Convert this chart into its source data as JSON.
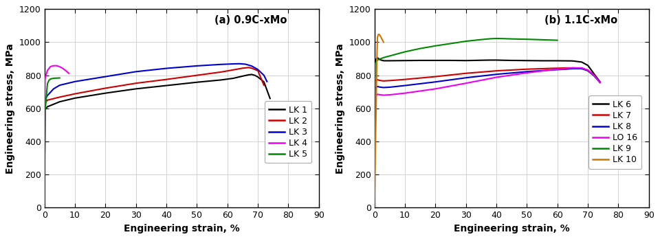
{
  "title_a": "(a) 0.9C-xMo",
  "title_b": "(b) 1.1C-xMo",
  "xlabel": "Engineering strain, %",
  "ylabel": "Engineering stress, MPa",
  "ylim": [
    0,
    1200
  ],
  "xlim": [
    0,
    90
  ],
  "yticks": [
    0,
    200,
    400,
    600,
    800,
    1000,
    1200
  ],
  "xticks": [
    0,
    10,
    20,
    30,
    40,
    50,
    60,
    70,
    80,
    90
  ],
  "background_color": "#ffffff",
  "grid_color": "#cccccc",
  "curves_a": {
    "LK 1": {
      "color": "#000000",
      "points": [
        [
          0.0,
          0
        ],
        [
          0.15,
          590
        ],
        [
          0.5,
          600
        ],
        [
          1.0,
          610
        ],
        [
          5,
          640
        ],
        [
          10,
          662
        ],
        [
          20,
          692
        ],
        [
          30,
          718
        ],
        [
          40,
          738
        ],
        [
          50,
          758
        ],
        [
          58,
          772
        ],
        [
          62,
          782
        ],
        [
          65,
          795
        ],
        [
          67,
          803
        ],
        [
          68,
          805
        ],
        [
          69,
          800
        ],
        [
          70,
          790
        ],
        [
          72,
          760
        ],
        [
          74,
          660
        ]
      ]
    },
    "LK 2": {
      "color": "#cc0000",
      "points": [
        [
          0.0,
          0
        ],
        [
          0.15,
          630
        ],
        [
          0.5,
          640
        ],
        [
          1.0,
          650
        ],
        [
          5,
          668
        ],
        [
          10,
          688
        ],
        [
          20,
          722
        ],
        [
          30,
          752
        ],
        [
          40,
          775
        ],
        [
          50,
          800
        ],
        [
          58,
          820
        ],
        [
          62,
          833
        ],
        [
          65,
          843
        ],
        [
          67,
          847
        ],
        [
          68,
          843
        ],
        [
          70,
          828
        ],
        [
          72,
          740
        ]
      ]
    },
    "LK 3": {
      "color": "#0000cc",
      "points": [
        [
          0.0,
          0
        ],
        [
          0.15,
          650
        ],
        [
          0.5,
          665
        ],
        [
          1.0,
          678
        ],
        [
          3,
          718
        ],
        [
          5,
          740
        ],
        [
          10,
          762
        ],
        [
          20,
          792
        ],
        [
          30,
          822
        ],
        [
          40,
          842
        ],
        [
          50,
          857
        ],
        [
          58,
          866
        ],
        [
          62,
          869
        ],
        [
          64,
          870
        ],
        [
          66,
          867
        ],
        [
          68,
          856
        ],
        [
          70,
          835
        ],
        [
          72,
          800
        ],
        [
          73,
          762
        ]
      ]
    },
    "LK 4": {
      "color": "#ee00ee",
      "points": [
        [
          0.0,
          0
        ],
        [
          0.15,
          775
        ],
        [
          0.5,
          800
        ],
        [
          1.0,
          830
        ],
        [
          2,
          853
        ],
        [
          3,
          858
        ],
        [
          4,
          858
        ],
        [
          5,
          852
        ],
        [
          6,
          842
        ],
        [
          7,
          828
        ],
        [
          8,
          812
        ]
      ]
    },
    "LK 5": {
      "color": "#008800",
      "points": [
        [
          0.0,
          0
        ],
        [
          0.15,
          580
        ],
        [
          0.4,
          620
        ],
        [
          0.6,
          660
        ],
        [
          0.8,
          710
        ],
        [
          1.0,
          750
        ],
        [
          1.5,
          770
        ],
        [
          2.0,
          778
        ],
        [
          3.0,
          782
        ],
        [
          4.0,
          783
        ],
        [
          5.0,
          784
        ]
      ]
    }
  },
  "curves_b": {
    "LK 6": {
      "color": "#000000",
      "points": [
        [
          0.0,
          0
        ],
        [
          0.15,
          870
        ],
        [
          0.5,
          895
        ],
        [
          0.8,
          905
        ],
        [
          1.0,
          905
        ],
        [
          1.5,
          900
        ],
        [
          2,
          893
        ],
        [
          3,
          888
        ],
        [
          5,
          888
        ],
        [
          10,
          889
        ],
        [
          15,
          890
        ],
        [
          20,
          890
        ],
        [
          25,
          890
        ],
        [
          30,
          889
        ],
        [
          35,
          891
        ],
        [
          38,
          892
        ],
        [
          40,
          892
        ],
        [
          42,
          891
        ],
        [
          45,
          890
        ],
        [
          50,
          889
        ],
        [
          55,
          888
        ],
        [
          60,
          888
        ],
        [
          65,
          887
        ],
        [
          68,
          880
        ],
        [
          70,
          860
        ],
        [
          72,
          810
        ],
        [
          74,
          760
        ]
      ]
    },
    "LK 7": {
      "color": "#cc0000",
      "points": [
        [
          0.0,
          0
        ],
        [
          0.15,
          762
        ],
        [
          0.5,
          770
        ],
        [
          1.0,
          773
        ],
        [
          2,
          768
        ],
        [
          3,
          766
        ],
        [
          5,
          768
        ],
        [
          10,
          775
        ],
        [
          20,
          792
        ],
        [
          30,
          812
        ],
        [
          40,
          827
        ],
        [
          50,
          837
        ],
        [
          58,
          842
        ],
        [
          62,
          844
        ],
        [
          65,
          845
        ],
        [
          68,
          843
        ],
        [
          70,
          832
        ],
        [
          72,
          802
        ],
        [
          74,
          756
        ]
      ]
    },
    "LK 8": {
      "color": "#0000cc",
      "points": [
        [
          0.0,
          0
        ],
        [
          0.15,
          718
        ],
        [
          0.5,
          728
        ],
        [
          1.0,
          732
        ],
        [
          2,
          728
        ],
        [
          3,
          726
        ],
        [
          5,
          728
        ],
        [
          10,
          738
        ],
        [
          20,
          760
        ],
        [
          30,
          785
        ],
        [
          40,
          806
        ],
        [
          50,
          822
        ],
        [
          58,
          832
        ],
        [
          62,
          836
        ],
        [
          65,
          840
        ],
        [
          68,
          840
        ],
        [
          70,
          827
        ],
        [
          72,
          797
        ],
        [
          74,
          757
        ]
      ]
    },
    "LO 16": {
      "color": "#ee00ee",
      "points": [
        [
          0.0,
          0
        ],
        [
          0.15,
          668
        ],
        [
          0.5,
          678
        ],
        [
          1.0,
          685
        ],
        [
          2,
          682
        ],
        [
          3,
          680
        ],
        [
          5,
          682
        ],
        [
          10,
          692
        ],
        [
          20,
          718
        ],
        [
          30,
          752
        ],
        [
          40,
          788
        ],
        [
          50,
          815
        ],
        [
          58,
          833
        ],
        [
          62,
          840
        ],
        [
          65,
          845
        ],
        [
          68,
          845
        ],
        [
          70,
          830
        ],
        [
          72,
          800
        ],
        [
          74,
          757
        ]
      ]
    },
    "LK 9": {
      "color": "#008800",
      "points": [
        [
          0.0,
          0
        ],
        [
          0.15,
          868
        ],
        [
          0.5,
          878
        ],
        [
          1.0,
          892
        ],
        [
          2,
          900
        ],
        [
          3,
          907
        ],
        [
          5,
          917
        ],
        [
          10,
          942
        ],
        [
          15,
          962
        ],
        [
          20,
          978
        ],
        [
          25,
          992
        ],
        [
          30,
          1006
        ],
        [
          35,
          1016
        ],
        [
          38,
          1021
        ],
        [
          40,
          1023
        ],
        [
          42,
          1022
        ],
        [
          45,
          1020
        ],
        [
          50,
          1018
        ],
        [
          55,
          1015
        ],
        [
          60,
          1012
        ]
      ]
    },
    "LK 10": {
      "color": "#cc7700",
      "points": [
        [
          0.0,
          0
        ],
        [
          0.5,
          550
        ],
        [
          0.8,
          900
        ],
        [
          1.0,
          1030
        ],
        [
          1.2,
          1045
        ],
        [
          1.5,
          1048
        ],
        [
          1.8,
          1042
        ],
        [
          2.0,
          1035
        ],
        [
          2.5,
          1018
        ],
        [
          3.0,
          1000
        ]
      ]
    }
  },
  "legend_a": [
    "LK 1",
    "LK 2",
    "LK 3",
    "LK 4",
    "LK 5"
  ],
  "legend_b": [
    "LK 6",
    "LK 7",
    "LK 8",
    "LO 16",
    "LK 9",
    "LK 10"
  ],
  "legend_colors_a": [
    "#000000",
    "#cc0000",
    "#0000cc",
    "#ee00ee",
    "#008800"
  ],
  "legend_colors_b": [
    "#000000",
    "#cc0000",
    "#0000cc",
    "#ee00ee",
    "#008800",
    "#cc7700"
  ]
}
